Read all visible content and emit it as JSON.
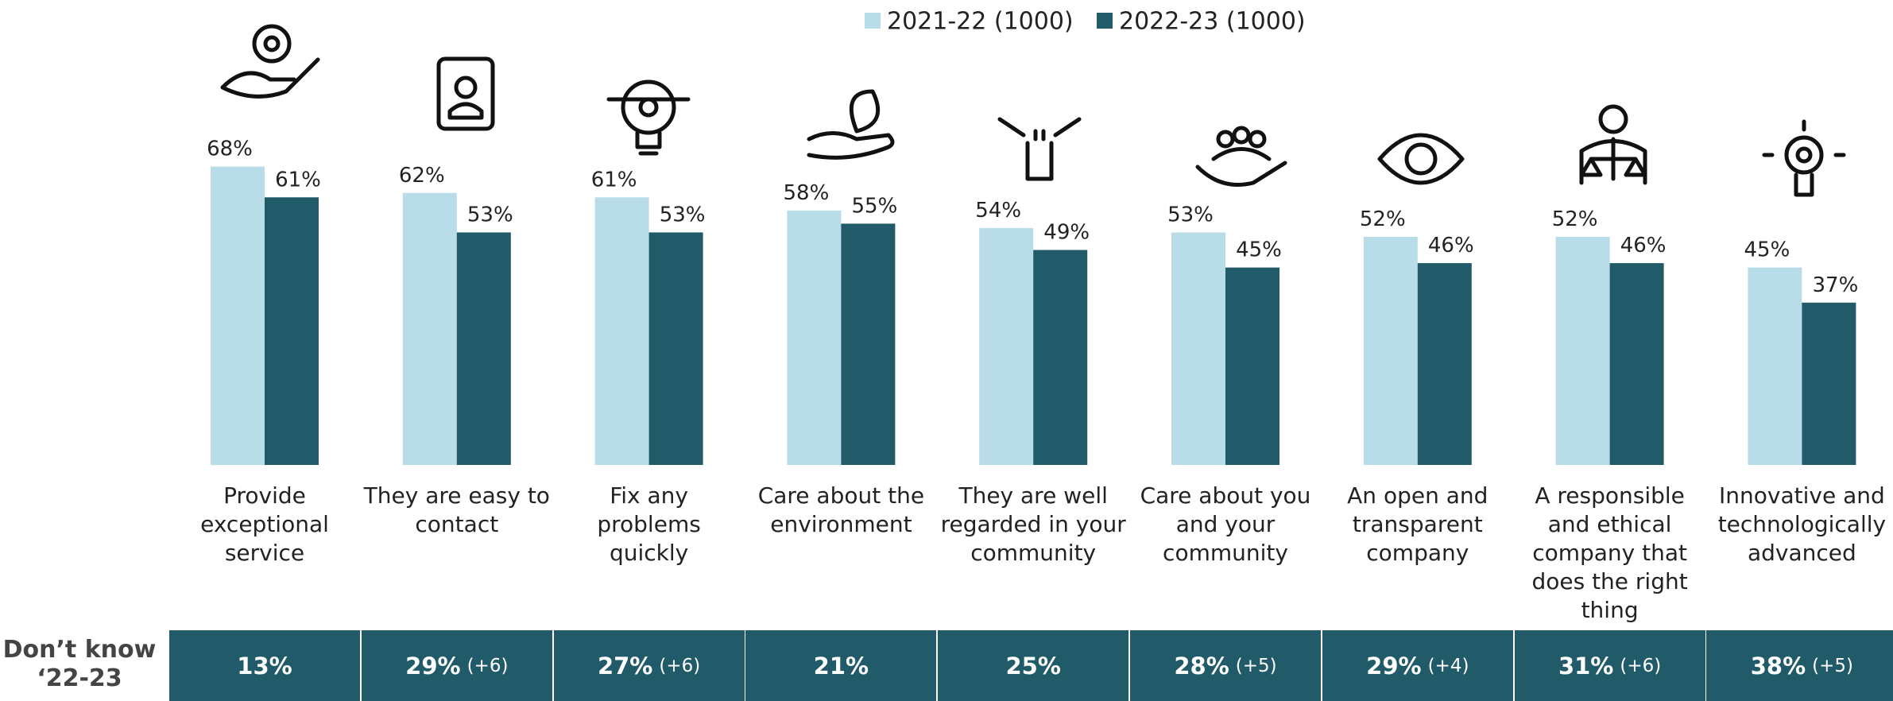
{
  "chart_data": {
    "type": "bar",
    "categories": [
      "Provide exceptional service",
      "They are easy to contact",
      "Fix any problems quickly",
      "Care about the environment",
      "They are well regarded in your community",
      "Care about you and your community",
      "An open and transparent company",
      "A responsible and ethical company that does the right thing",
      "Innovative and technologically advanced"
    ],
    "series": [
      {
        "name": "2021-22 (1000)",
        "color": "#b8dde8",
        "values": [
          68,
          62,
          61,
          58,
          54,
          53,
          52,
          52,
          45
        ],
        "value_labels": [
          "68%",
          "62%",
          "61%",
          "58%",
          "54%",
          "53%",
          "52%",
          "52%",
          "45%"
        ]
      },
      {
        "name": "2022-23 (1000)",
        "color": "#215a69",
        "values": [
          61,
          53,
          53,
          55,
          49,
          45,
          46,
          46,
          37
        ],
        "value_labels": [
          "61%",
          "53%",
          "53%",
          "55%",
          "49%",
          "45%",
          "46%",
          "46%",
          "37%"
        ]
      }
    ],
    "ylim": [
      0,
      100
    ],
    "legend": "top",
    "dont_know": {
      "label": "Don’t know ‘22-23",
      "values": [
        13,
        29,
        27,
        21,
        25,
        28,
        29,
        31,
        38
      ],
      "value_labels": [
        "13%",
        "29%",
        "27%",
        "21%",
        "25%",
        "28%",
        "29%",
        "31%",
        "38%"
      ],
      "changes": [
        null,
        6,
        6,
        null,
        null,
        5,
        4,
        6,
        5
      ],
      "change_labels": [
        null,
        "(+6)",
        "(+6)",
        null,
        null,
        "(+5)",
        "(+4)",
        "(+6)",
        "(+5)"
      ]
    }
  }
}
